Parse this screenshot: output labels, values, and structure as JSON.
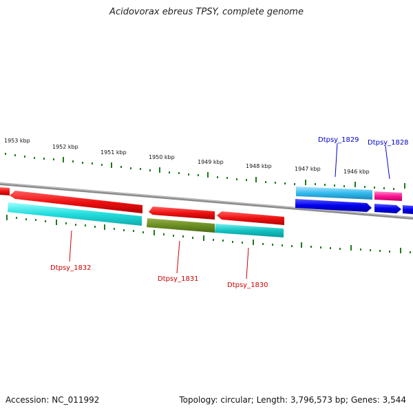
{
  "title": "Acidovorax ebreus TPSY, complete genome",
  "footer": {
    "accession": "Accession: NC_011992",
    "summary": "Topology: circular; Length: 3,796,573 bp; Genes: 3,544"
  },
  "scale_labels": [
    "1953 kbp",
    "1952 kbp",
    "1951 kbp",
    "1950 kbp",
    "1949 kbp",
    "1948 kbp",
    "1947 kbp",
    "1946 kbp"
  ],
  "gene_labels": [
    {
      "text": "Dtpsy_1829",
      "color": "#0000cc"
    },
    {
      "text": "Dtpsy_1828",
      "color": "#0000cc"
    },
    {
      "text": "Dtpsy_1832",
      "color": "#cc0000"
    },
    {
      "text": "Dtpsy_1831",
      "color": "#cc0000"
    },
    {
      "text": "Dtpsy_1830",
      "color": "#cc0000"
    }
  ],
  "colors": {
    "backbone": "#8c8c8c",
    "tick": "#1a7a1a",
    "red": "#ee1111",
    "cyan": "#22dddd",
    "olive": "#6b8e23",
    "teal": "#14c2c2",
    "lightblue": "#33bbee",
    "blue": "#0000ee",
    "pink": "#ff1493"
  }
}
